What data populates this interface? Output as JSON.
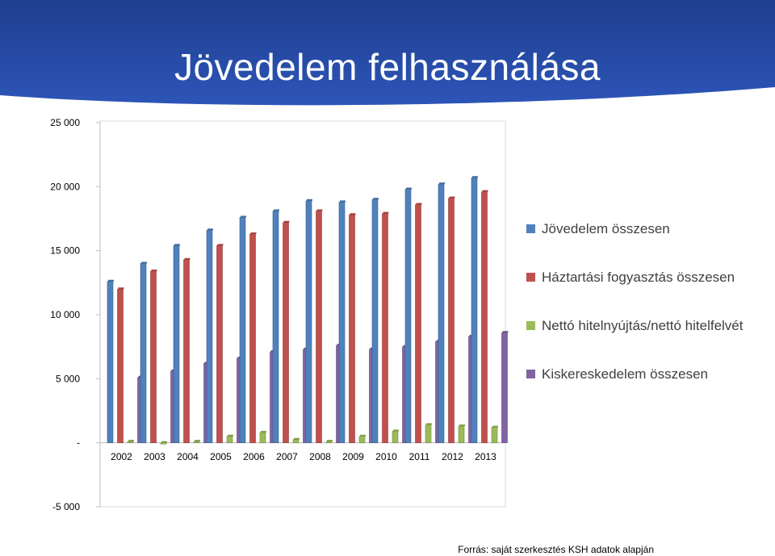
{
  "title": "Jövedelem felhasználása",
  "source_note": "Forrás: saját szerkesztés KSH adatok alapján",
  "colors": {
    "banner_top": "#1f3f8f",
    "banner_bottom": "#2d55b8",
    "series": [
      "#4f81bd",
      "#c0504d",
      "#9bbb59",
      "#8064a2"
    ]
  },
  "chart_data": {
    "type": "bar",
    "title": "",
    "xlabel": "",
    "ylabel": "",
    "ylim": [
      -5000,
      25000
    ],
    "yticks": [
      -5000,
      0,
      5000,
      10000,
      15000,
      20000,
      25000
    ],
    "ytick_labels": [
      "-5 000",
      "-",
      "5 000",
      "10 000",
      "15 000",
      "20 000",
      "25 000"
    ],
    "grid": false,
    "legend_position": "right",
    "categories": [
      "2002",
      "2003",
      "2004",
      "2005",
      "2006",
      "2007",
      "2008",
      "2009",
      "2010",
      "2011",
      "2012",
      "2013"
    ],
    "series": [
      {
        "name": "Jövedelem összesen",
        "color": "#4f81bd",
        "values": [
          12600,
          14000,
          15400,
          16600,
          17600,
          18100,
          18900,
          18800,
          19000,
          19800,
          20200,
          20700
        ]
      },
      {
        "name": "Háztartási fogyasztás összesen",
        "color": "#c0504d",
        "values": [
          12000,
          13400,
          14300,
          15400,
          16300,
          17200,
          18100,
          17800,
          17900,
          18600,
          19100,
          19600
        ]
      },
      {
        "name": "Nettó hitelnyújtás/nettó hitelfelvét",
        "color": "#9bbb59",
        "values": [
          100,
          -100,
          100,
          500,
          800,
          250,
          100,
          500,
          900,
          1400,
          1300,
          1200
        ]
      },
      {
        "name": "Kiskereskedelem összesen",
        "color": "#8064a2",
        "values": [
          5100,
          5600,
          6200,
          6600,
          7100,
          7300,
          7600,
          7300,
          7500,
          7900,
          8300,
          8600
        ]
      }
    ]
  }
}
